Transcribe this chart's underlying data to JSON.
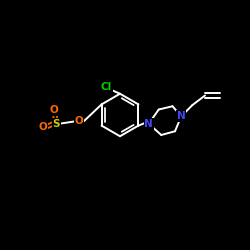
{
  "background_color": "#000000",
  "bond_color": "#ffffff",
  "cl_color": "#00cc00",
  "n_color": "#4444ff",
  "o_color": "#ff6600",
  "s_color": "#cccc00",
  "figsize": [
    2.5,
    2.5
  ],
  "dpi": 100,
  "xlim": [
    0,
    10
  ],
  "ylim": [
    0,
    10
  ]
}
